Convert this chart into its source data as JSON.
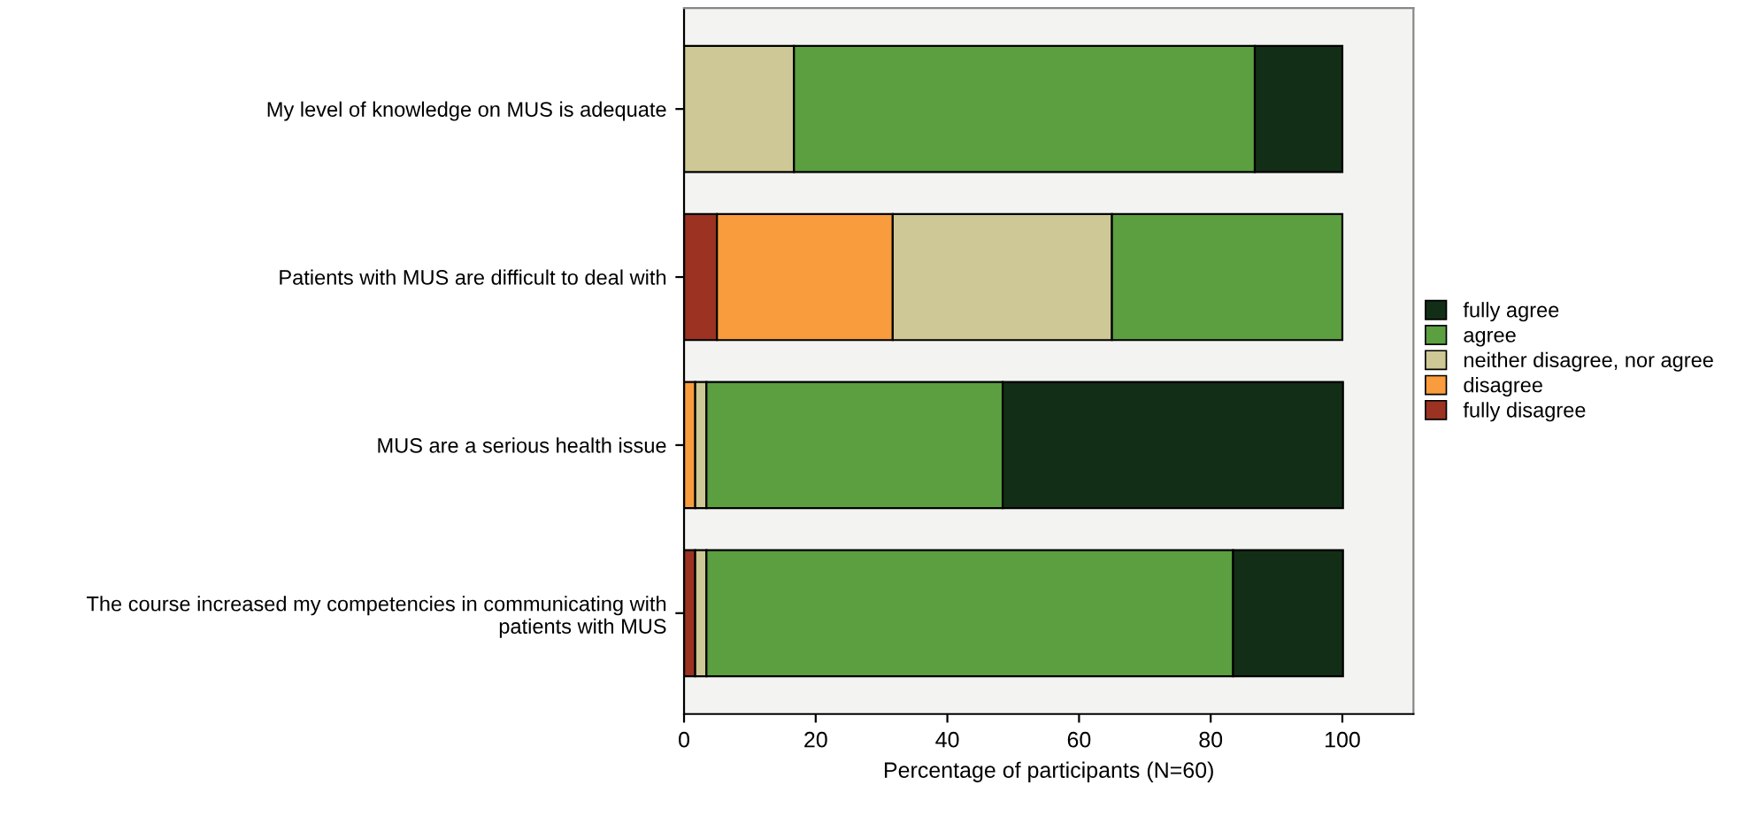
{
  "chart_data": {
    "type": "bar",
    "orientation": "horizontal",
    "stacked": true,
    "xlabel": "Percentage of participants (N=60)",
    "categories": [
      "My level of knowledge on MUS is adequate",
      "Patients with MUS are difficult to deal with",
      "MUS are a serious health issue",
      "The course increased my competencies in communicating with\npatients with MUS"
    ],
    "series": [
      {
        "name": "fully disagree",
        "color": "#9b3222",
        "values": [
          0,
          5,
          0,
          1.7
        ]
      },
      {
        "name": "disagree",
        "color": "#f89c3e",
        "values": [
          0,
          26.7,
          1.7,
          0
        ]
      },
      {
        "name": "neither disagree, nor agree",
        "color": "#cdc895",
        "values": [
          16.7,
          33.3,
          1.7,
          1.7
        ]
      },
      {
        "name": "agree",
        "color": "#5b9f40",
        "values": [
          70,
          35,
          45,
          80
        ]
      },
      {
        "name": "fully agree",
        "color": "#132e16",
        "values": [
          13.3,
          0,
          51.7,
          16.7
        ]
      }
    ],
    "xlim": [
      0,
      110.8
    ],
    "xticks": [
      0,
      20,
      40,
      60,
      80,
      100
    ],
    "grid": false,
    "legend": "right"
  }
}
